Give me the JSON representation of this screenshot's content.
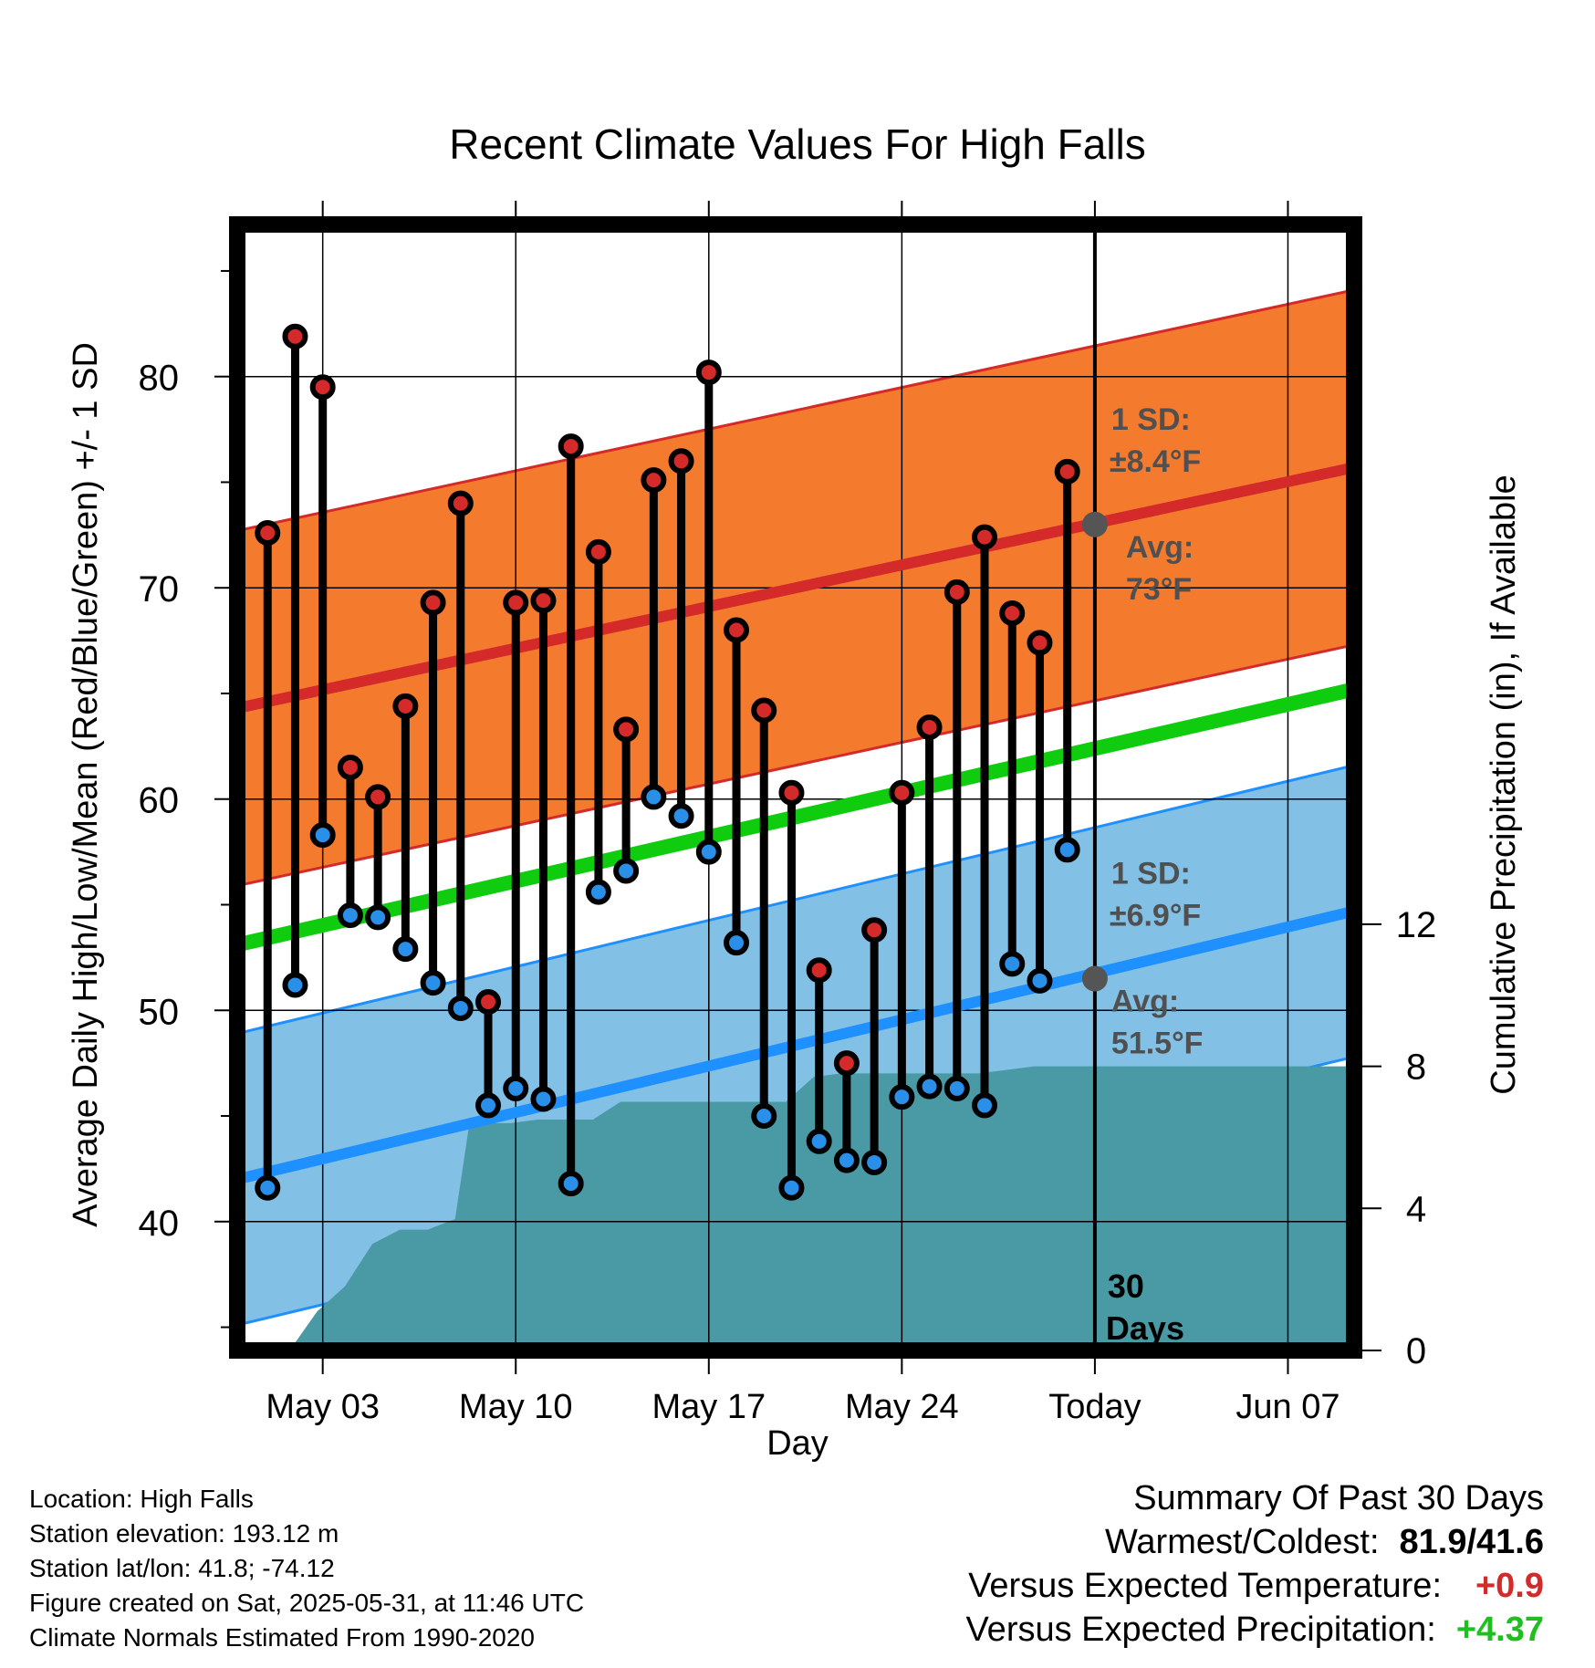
{
  "chart_data": {
    "type": "line",
    "title": "Recent Climate Values For High Falls",
    "xlabel": "Day",
    "ylabel_left": "Average Daily High/Low/Mean (Red/Blue/Green) +/- 1 SD",
    "ylabel_right": "Cumulative Precipitation (in), If Available",
    "x_tick_labels": [
      "May 03",
      "May 10",
      "May 17",
      "May 24",
      "Today",
      "Jun 07"
    ],
    "x_tick_days": [
      3,
      10,
      17,
      24,
      31,
      38
    ],
    "xlim": [
      -0.1,
      40.4
    ],
    "ylim_left": [
      33.9,
      87.2
    ],
    "ylim_right": [
      0,
      31.7
    ],
    "y_left_ticks": [
      40,
      50,
      60,
      70,
      80
    ],
    "y_right_ticks": [
      0,
      4,
      8,
      12
    ],
    "today_day": 31,
    "days": [
      1,
      2,
      3,
      4,
      5,
      6,
      7,
      8,
      9,
      10,
      11,
      12,
      13,
      14,
      15,
      16,
      17,
      18,
      19,
      20,
      21,
      22,
      23,
      24,
      25,
      26,
      27,
      28,
      29,
      30
    ],
    "series": [
      {
        "name": "High",
        "color": "#d42a2a",
        "values": [
          72.6,
          81.9,
          79.5,
          61.5,
          60.1,
          64.4,
          69.3,
          74.0,
          50.4,
          69.3,
          69.4,
          76.7,
          71.7,
          63.3,
          75.1,
          76.0,
          80.2,
          68.0,
          64.2,
          60.3,
          51.9,
          47.5,
          53.8,
          60.3,
          63.4,
          69.8,
          72.4,
          68.8,
          67.4,
          75.5
        ]
      },
      {
        "name": "Low",
        "color": "#2a8fe8",
        "values": [
          41.6,
          51.2,
          58.3,
          54.5,
          54.4,
          52.9,
          51.3,
          50.1,
          45.5,
          46.3,
          45.8,
          41.8,
          55.6,
          56.6,
          60.1,
          59.2,
          57.5,
          53.2,
          45.0,
          41.6,
          43.8,
          42.9,
          42.8,
          45.9,
          46.4,
          46.3,
          45.5,
          52.2,
          51.4,
          57.6
        ]
      }
    ],
    "normal_high": {
      "start": 64.3,
      "end": 75.7,
      "sd_label": "1 SD:",
      "sd_value": "±8.4°F",
      "avg_label": "Avg:",
      "avg_value": "73°F",
      "avg_today": 73.0,
      "band_color": "#f47b2e",
      "line_color": "#d42a2a"
    },
    "normal_low": {
      "start": 42.0,
      "end": 54.7,
      "sd_label": "1 SD:",
      "sd_value": "±6.9°F",
      "avg_label": "Avg:",
      "avg_value": "51.5°F",
      "avg_today": 51.5,
      "band_color": "#82c0e6",
      "line_color": "#1e90ff"
    },
    "normal_mean": {
      "start": 53.1,
      "end": 65.2,
      "color": "#0fcc0f"
    },
    "precip_color": "#4a9aa5",
    "precip_cumulative": {
      "x": [
        1.8,
        2.8,
        3.8,
        4.8,
        5.8,
        6.8,
        7.8,
        8.3,
        8.8,
        9.8,
        10.8,
        11.8,
        12.8,
        13.8,
        14.8,
        15.8,
        16.8,
        17.8,
        18.8,
        19.8,
        20.8,
        21.8,
        22.8,
        23.8,
        24.8,
        25.8,
        26.8,
        27.8,
        28.8,
        29.8,
        30.8,
        40.4
      ],
      "y": [
        0,
        1.1,
        1.8,
        3.0,
        3.4,
        3.4,
        3.7,
        6.3,
        6.4,
        6.4,
        6.5,
        6.5,
        6.5,
        7.0,
        7.0,
        7.0,
        7.0,
        7.0,
        7.0,
        7.0,
        7.7,
        7.8,
        7.8,
        7.8,
        7.8,
        7.8,
        7.8,
        7.9,
        8.0,
        8.0,
        8.0,
        8.0
      ]
    },
    "days_label": "30\nDays"
  },
  "footer": {
    "location": "Location: High Falls",
    "elevation": "Station elevation: 193.12 m",
    "latlon": "Station lat/lon: 41.8; -74.12",
    "created": "Figure created on Sat, 2025-05-31, at 11:46 UTC",
    "normals": "Climate Normals Estimated From 1990-2020"
  },
  "summary": {
    "title": "Summary Of Past 30 Days",
    "warmest_label": "Warmest/Coldest:",
    "warmest_value": "81.9/41.6",
    "temp_label": "Versus Expected Temperature:",
    "temp_value": "+0.9",
    "temp_color": "#d42a2a",
    "precip_label": "Versus Expected Precipitation:",
    "precip_value": "+4.37",
    "precip_color": "#1fbf1f"
  }
}
